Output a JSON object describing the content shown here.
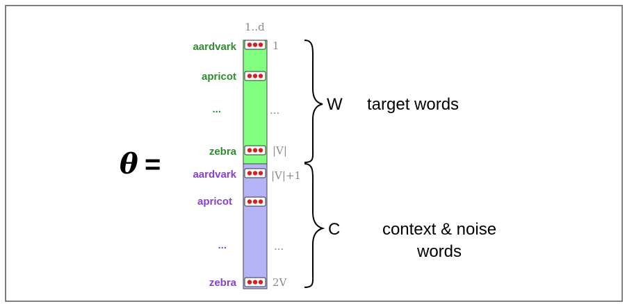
{
  "lhs": {
    "symbol": "θ",
    "equals": "="
  },
  "column_header": "1..d",
  "target_group": {
    "rows": [
      {
        "word": "aardvark",
        "index": "1"
      },
      {
        "word": "apricot",
        "index": ""
      },
      {
        "word": "...",
        "index": "..."
      },
      {
        "word": "zebra",
        "index": "|V|"
      }
    ],
    "letter": "W",
    "label": "target words"
  },
  "context_group": {
    "rows": [
      {
        "word": "aardvark",
        "index": "|V|+1"
      },
      {
        "word": "apricot",
        "index": ""
      },
      {
        "word": "...",
        "index": "..."
      },
      {
        "word": "zebra",
        "index": "2V"
      }
    ],
    "letter": "C",
    "label_line1": "context & noise",
    "label_line2": "words"
  },
  "colors": {
    "target_fill": "#80ff80",
    "target_text": "#2e8b2e",
    "context_fill": "#b4b4f6",
    "context_text": "#8a3fd0",
    "dot": "#d42020",
    "index_text": "#8a8a8a"
  }
}
